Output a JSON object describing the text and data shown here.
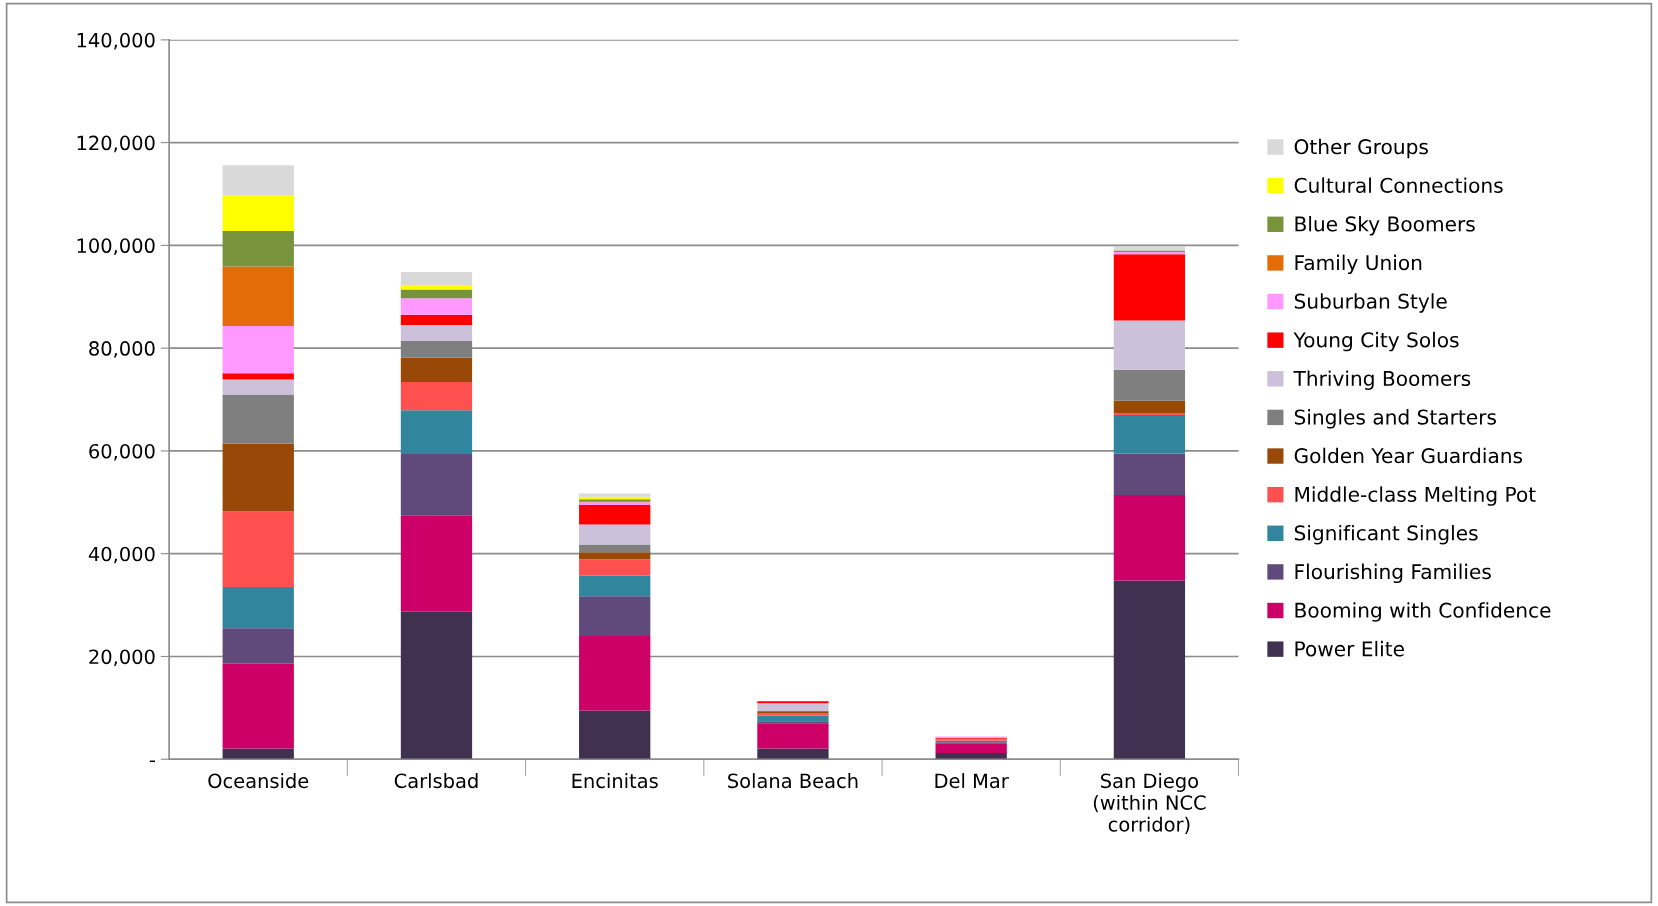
{
  "chart_data": {
    "type": "bar",
    "stacked": true,
    "categories": [
      "Oceanside",
      "Carlsbad",
      "Encinitas",
      "Solana Beach",
      "Del Mar",
      "San Diego\n(within NCC\ncorridor)"
    ],
    "ylim": [
      0,
      140000
    ],
    "yticks": [
      {
        "value": 0,
        "label": "-"
      },
      {
        "value": 20000,
        "label": "20,000"
      },
      {
        "value": 40000,
        "label": "40,000"
      },
      {
        "value": 60000,
        "label": "60,000"
      },
      {
        "value": 80000,
        "label": "80,000"
      },
      {
        "value": 100000,
        "label": "100,000"
      },
      {
        "value": 120000,
        "label": "120,000"
      },
      {
        "value": 140000,
        "label": "140,000"
      }
    ],
    "grid": "y",
    "legend": "right",
    "series": [
      {
        "name": "Power Elite",
        "color": "#403151",
        "values": [
          2100,
          28700,
          9500,
          2100,
          1200,
          34800
        ]
      },
      {
        "name": "Booming with Confidence",
        "color": "#cc0066",
        "values": [
          16500,
          18800,
          14500,
          4900,
          1900,
          16600
        ]
      },
      {
        "name": "Flourishing Families",
        "color": "#604a7b",
        "values": [
          6900,
          11900,
          7700,
          400,
          200,
          8100
        ]
      },
      {
        "name": "Significant Singles",
        "color": "#31859c",
        "values": [
          8000,
          8500,
          4000,
          1100,
          300,
          7500
        ]
      },
      {
        "name": "Middle-class Melting Pot",
        "color": "#ff5050",
        "values": [
          14700,
          5500,
          3200,
          400,
          200,
          300
        ]
      },
      {
        "name": "Golden Year Guardians",
        "color": "#984807",
        "values": [
          13200,
          4800,
          1400,
          300,
          100,
          2500
        ]
      },
      {
        "name": "Singles and Starters",
        "color": "#7f7f7f",
        "values": [
          9600,
          3200,
          1500,
          200,
          100,
          6000
        ]
      },
      {
        "name": "Thriving Boomers",
        "color": "#ccc0da",
        "values": [
          2900,
          3100,
          3900,
          1500,
          null,
          9600
        ]
      },
      {
        "name": "Young City Solos",
        "color": "#ff0000",
        "values": [
          1200,
          2000,
          3800,
          400,
          200,
          12900
        ]
      },
      {
        "name": "Suburban Style",
        "color": "#ff99ff",
        "values": [
          9200,
          3200,
          500,
          0,
          200,
          400
        ]
      },
      {
        "name": "Family Union",
        "color": "#e36c09",
        "values": [
          11600,
          0,
          200,
          0,
          0,
          0
        ]
      },
      {
        "name": "Blue Sky Boomers",
        "color": "#77933c",
        "values": [
          6900,
          1700,
          400,
          0,
          0,
          300
        ]
      },
      {
        "name": "Cultural Connections",
        "color": "#ffff00",
        "values": [
          6900,
          900,
          500,
          0,
          0,
          0
        ]
      },
      {
        "name": "Other Groups",
        "color": "#d9d9d9",
        "values": [
          5900,
          2500,
          600,
          0,
          0,
          900
        ]
      }
    ]
  }
}
